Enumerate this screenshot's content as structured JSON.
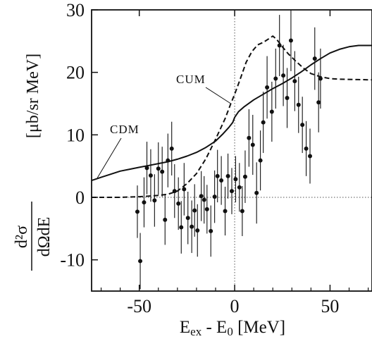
{
  "chart_data": {
    "type": "scatter",
    "title": "",
    "xlabel": {
      "main": "E",
      "sub1": "ex",
      "mid": " - E",
      "sub2": "0",
      "unit": " [MeV]"
    },
    "ylabel": {
      "numerator": "d²σ",
      "denominator": "dΩdE",
      "unit": "[μb/sr MeV]"
    },
    "xlim": [
      -75,
      72
    ],
    "ylim": [
      -15,
      30
    ],
    "xticks": [
      -50,
      0,
      50
    ],
    "xtick_labels": [
      "-50",
      "0",
      "50"
    ],
    "yticks": [
      -10,
      0,
      10,
      20,
      30
    ],
    "ytick_labels": [
      "-10",
      "0",
      "10",
      "20",
      "30"
    ],
    "reference_lines": {
      "x": 0,
      "y": 0,
      "style": "dotted"
    },
    "series": [
      {
        "name": "data",
        "kind": "points-with-errorbars",
        "points": [
          {
            "x": -51,
            "y": -2.3,
            "err": 4.2
          },
          {
            "x": -49.5,
            "y": -10.2,
            "err": 4.5
          },
          {
            "x": -47.5,
            "y": -0.8,
            "err": 4.0
          },
          {
            "x": -46,
            "y": 4.7,
            "err": 4.2
          },
          {
            "x": -44,
            "y": 3.5,
            "err": 4.2
          },
          {
            "x": -42,
            "y": -0.5,
            "err": 4.2
          },
          {
            "x": -40,
            "y": 4.6,
            "err": 4.2
          },
          {
            "x": -38,
            "y": 4.1,
            "err": 4.0
          },
          {
            "x": -36.5,
            "y": -3.6,
            "err": 4.0
          },
          {
            "x": -35,
            "y": 5.9,
            "err": 4.3
          },
          {
            "x": -33,
            "y": 7.8,
            "err": 4.3
          },
          {
            "x": -31.5,
            "y": 1.0,
            "err": 4.3
          },
          {
            "x": -29.5,
            "y": -1.0,
            "err": 4.2
          },
          {
            "x": -28,
            "y": -4.8,
            "err": 4.2
          },
          {
            "x": -26.5,
            "y": 1.3,
            "err": 4.2
          },
          {
            "x": -24.5,
            "y": -3.3,
            "err": 4.2
          },
          {
            "x": -22.5,
            "y": -4.7,
            "err": 4.2
          },
          {
            "x": -21,
            "y": -2.1,
            "err": 4.2
          },
          {
            "x": -19.5,
            "y": -5.3,
            "err": 4.2
          },
          {
            "x": -17.5,
            "y": 0.2,
            "err": 4.0
          },
          {
            "x": -16,
            "y": -0.4,
            "err": 3.8
          },
          {
            "x": -14.5,
            "y": -1.9,
            "err": 3.9
          },
          {
            "x": -12.5,
            "y": -5.4,
            "err": 4.1
          },
          {
            "x": -10.5,
            "y": 0.1,
            "err": 4.2
          },
          {
            "x": -9,
            "y": 3.4,
            "err": 4.2
          },
          {
            "x": -7,
            "y": 2.7,
            "err": 3.9
          },
          {
            "x": -5,
            "y": -2.2,
            "err": 3.9
          },
          {
            "x": -3.5,
            "y": 3.4,
            "err": 3.6
          },
          {
            "x": -1.5,
            "y": 1.0,
            "err": 3.7
          },
          {
            "x": 0.5,
            "y": 2.9,
            "err": 3.7
          },
          {
            "x": 2.5,
            "y": 1.6,
            "err": 3.9
          },
          {
            "x": 4,
            "y": -2.2,
            "err": 4.0
          },
          {
            "x": 5.5,
            "y": 3.3,
            "err": 4.2
          },
          {
            "x": 7.5,
            "y": 9.5,
            "err": 4.6
          },
          {
            "x": 9.5,
            "y": 8.4,
            "err": 4.8
          },
          {
            "x": 11.5,
            "y": 0.7,
            "err": 4.9
          },
          {
            "x": 13.5,
            "y": 5.9,
            "err": 4.8
          },
          {
            "x": 15,
            "y": 12.0,
            "err": 4.9
          },
          {
            "x": 17,
            "y": 17.6,
            "err": 5.0
          },
          {
            "x": 19.5,
            "y": 13.7,
            "err": 4.8
          },
          {
            "x": 21.5,
            "y": 19.0,
            "err": 4.8
          },
          {
            "x": 23.5,
            "y": 24.3,
            "err": 4.9
          },
          {
            "x": 25.5,
            "y": 19.5,
            "err": 4.9
          },
          {
            "x": 27.5,
            "y": 15.9,
            "err": 4.8
          },
          {
            "x": 29.5,
            "y": 25.1,
            "err": 4.9
          },
          {
            "x": 31.5,
            "y": 18.6,
            "err": 4.8
          },
          {
            "x": 33.5,
            "y": 14.8,
            "err": 4.5
          },
          {
            "x": 35.5,
            "y": 11.6,
            "err": 4.5
          },
          {
            "x": 37.5,
            "y": 7.8,
            "err": 4.4
          },
          {
            "x": 39.5,
            "y": 6.6,
            "err": 4.4
          },
          {
            "x": 42,
            "y": 22.2,
            "err": 5.0
          },
          {
            "x": 44,
            "y": 15.2,
            "err": 4.8
          },
          {
            "x": 45,
            "y": 19.0,
            "err": 4.8
          }
        ]
      },
      {
        "name": "CDM",
        "kind": "line",
        "style": "solid",
        "points": [
          [
            -75,
            2.7
          ],
          [
            -70,
            3.2
          ],
          [
            -65,
            3.7
          ],
          [
            -60,
            4.2
          ],
          [
            -55,
            4.5
          ],
          [
            -50,
            4.8
          ],
          [
            -45,
            5.1
          ],
          [
            -40,
            5.4
          ],
          [
            -35,
            5.7
          ],
          [
            -30,
            6.1
          ],
          [
            -25,
            6.6
          ],
          [
            -20,
            7.2
          ],
          [
            -15,
            8.0
          ],
          [
            -10,
            9.0
          ],
          [
            -6,
            10.2
          ],
          [
            -3,
            11.2
          ],
          [
            -1,
            12.0
          ],
          [
            0,
            12.8
          ],
          [
            2,
            13.7
          ],
          [
            5,
            14.5
          ],
          [
            10,
            15.6
          ],
          [
            15,
            16.5
          ],
          [
            20,
            17.4
          ],
          [
            25,
            18.2
          ],
          [
            30,
            19.1
          ],
          [
            35,
            20.1
          ],
          [
            40,
            21.2
          ],
          [
            45,
            22.2
          ],
          [
            50,
            23.1
          ],
          [
            55,
            23.7
          ],
          [
            60,
            24.1
          ],
          [
            65,
            24.3
          ],
          [
            72,
            24.3
          ]
        ]
      },
      {
        "name": "CUM",
        "kind": "line",
        "style": "dashed",
        "points": [
          [
            -75,
            0.0
          ],
          [
            -60,
            0.0
          ],
          [
            -50,
            0.1
          ],
          [
            -45,
            0.2
          ],
          [
            -40,
            0.3
          ],
          [
            -35,
            0.5
          ],
          [
            -30,
            1.0
          ],
          [
            -25,
            2.2
          ],
          [
            -20,
            3.8
          ],
          [
            -15,
            6.2
          ],
          [
            -10,
            9.3
          ],
          [
            -5,
            12.6
          ],
          [
            -2,
            15.0
          ],
          [
            0,
            16.5
          ],
          [
            3,
            19.0
          ],
          [
            6,
            21.6
          ],
          [
            9,
            23.3
          ],
          [
            12,
            24.4
          ],
          [
            15,
            24.8
          ],
          [
            18,
            25.4
          ],
          [
            20,
            25.8
          ],
          [
            22,
            25.3
          ],
          [
            25,
            24.1
          ],
          [
            28,
            23.0
          ],
          [
            32,
            21.8
          ],
          [
            36,
            20.7
          ],
          [
            40,
            19.8
          ],
          [
            45,
            19.3
          ],
          [
            50,
            19.0
          ],
          [
            55,
            18.9
          ],
          [
            72,
            18.8
          ]
        ]
      }
    ],
    "curve_labels": [
      {
        "text": "CUM",
        "series": "CUM",
        "pointer_to": [
          -2,
          15.0
        ]
      },
      {
        "text": "CDM",
        "series": "CDM",
        "pointer_to": [
          -72,
          3.1
        ]
      }
    ]
  }
}
